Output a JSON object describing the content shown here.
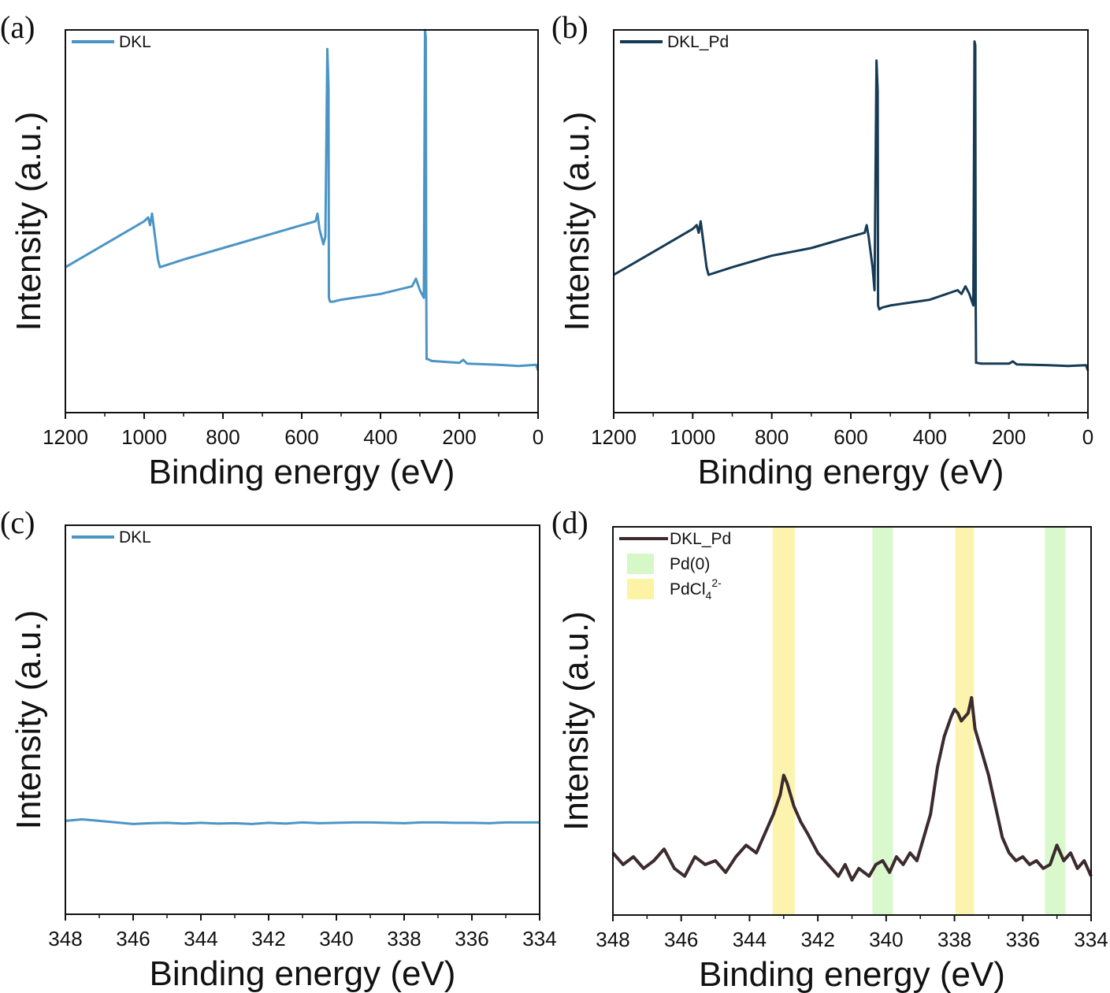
{
  "figure": {
    "type": "multi-panel XPS spectra"
  },
  "chart_data": [
    {
      "panel": "(a)",
      "type": "line",
      "xlabel": "Binding energy (eV)",
      "ylabel": "Intensity (a.u.)",
      "xlim": [
        1200,
        0
      ],
      "ylim": [
        0,
        100
      ],
      "xticks": [
        1200,
        1000,
        800,
        600,
        400,
        200,
        0
      ],
      "grid": false,
      "legend_position": "top-left",
      "series": [
        {
          "name": "DKL",
          "color": "#4B95C5",
          "x": [
            1200,
            1100,
            1000,
            990,
            985,
            980,
            975,
            965,
            960,
            900,
            800,
            700,
            600,
            565,
            560,
            555,
            545,
            540,
            535,
            532,
            531,
            528,
            520,
            500,
            400,
            320,
            310,
            300,
            290,
            287,
            285,
            284,
            283,
            280,
            270,
            200,
            190,
            180,
            100,
            50,
            5,
            0
          ],
          "values": [
            38,
            44,
            50,
            51,
            49,
            52,
            48,
            40,
            38,
            40,
            43,
            46,
            49,
            50,
            52,
            48,
            44,
            46,
            95,
            85,
            30,
            29,
            29,
            29.5,
            31,
            33,
            35,
            32,
            30,
            100,
            98,
            36,
            14,
            14,
            13.5,
            13,
            13.8,
            12.8,
            12.5,
            12.2,
            12.5,
            11
          ]
        }
      ]
    },
    {
      "panel": "(b)",
      "type": "line",
      "xlabel": "Binding energy (eV)",
      "ylabel": "Intensity (a.u.)",
      "xlim": [
        1200,
        0
      ],
      "ylim": [
        0,
        100
      ],
      "xticks": [
        1200,
        1000,
        800,
        600,
        400,
        200,
        0
      ],
      "grid": false,
      "legend_position": "top-left",
      "series": [
        {
          "name": "DKL_Pd",
          "color": "#173A55",
          "x": [
            1200,
            1100,
            1000,
            990,
            985,
            980,
            975,
            965,
            960,
            900,
            800,
            700,
            600,
            565,
            560,
            555,
            545,
            540,
            535,
            532,
            531,
            528,
            520,
            500,
            400,
            330,
            320,
            310,
            300,
            290,
            287,
            285,
            284,
            283,
            280,
            270,
            200,
            190,
            180,
            100,
            50,
            5,
            0
          ],
          "values": [
            36,
            42,
            48,
            49,
            47,
            50,
            46,
            38,
            36,
            38,
            41,
            43,
            46,
            47,
            49,
            46,
            38,
            32,
            92,
            84,
            28,
            27,
            27.5,
            28,
            29.5,
            32,
            31,
            33,
            31,
            28,
            97,
            96,
            30,
            13,
            13,
            12.8,
            12.8,
            13.4,
            12.6,
            12.4,
            12.2,
            12.4,
            11
          ]
        }
      ]
    },
    {
      "panel": "(c)",
      "type": "line",
      "xlabel": "Binding energy (eV)",
      "ylabel": "Intensity (a.u.)",
      "xlim": [
        348,
        334
      ],
      "ylim": [
        0,
        100
      ],
      "xticks": [
        348,
        346,
        344,
        342,
        340,
        338,
        336,
        334
      ],
      "grid": false,
      "legend_position": "top-left",
      "series": [
        {
          "name": "DKL",
          "color": "#4B95C5",
          "x": [
            348,
            347.5,
            347,
            346.5,
            346,
            345.5,
            345,
            344.5,
            344,
            343.5,
            343,
            342.5,
            342,
            341.5,
            341,
            340.5,
            340,
            339.5,
            339,
            338.5,
            338,
            337.5,
            337,
            336.5,
            336,
            335.5,
            335,
            334.5,
            334
          ],
          "values": [
            24,
            24.4,
            24,
            23.6,
            23.2,
            23.4,
            23.5,
            23.3,
            23.5,
            23.3,
            23.4,
            23.2,
            23.5,
            23.3,
            23.6,
            23.4,
            23.5,
            23.6,
            23.6,
            23.5,
            23.4,
            23.6,
            23.6,
            23.5,
            23.5,
            23.4,
            23.6,
            23.6,
            23.6
          ]
        }
      ]
    },
    {
      "panel": "(d)",
      "type": "line",
      "xlabel": "Binding energy (eV)",
      "ylabel": "Intensity (a.u.)",
      "xlim": [
        348,
        334
      ],
      "ylim": [
        0,
        100
      ],
      "xticks": [
        348,
        346,
        344,
        342,
        340,
        338,
        336,
        334
      ],
      "grid": false,
      "legend_position": "top-left",
      "series": [
        {
          "name": "DKL_Pd",
          "color": "#3C2A2E",
          "x": [
            348,
            347.7,
            347.4,
            347.1,
            346.8,
            346.5,
            346.2,
            345.9,
            345.6,
            345.3,
            345,
            344.7,
            344.4,
            344.1,
            343.8,
            343.5,
            343.3,
            343.1,
            343,
            342.9,
            342.7,
            342.5,
            342.3,
            342,
            341.8,
            341.6,
            341.4,
            341.2,
            341,
            340.8,
            340.5,
            340.3,
            340.1,
            339.9,
            339.7,
            339.5,
            339.3,
            339.1,
            338.9,
            338.7,
            338.5,
            338.3,
            338.1,
            338,
            337.9,
            337.8,
            337.6,
            337.5,
            337.4,
            337.2,
            337,
            336.8,
            336.6,
            336.4,
            336.2,
            336,
            335.8,
            335.6,
            335.4,
            335.2,
            335,
            334.8,
            334.6,
            334.4,
            334.2,
            334
          ],
          "values": [
            16,
            13,
            15,
            12,
            14,
            17,
            12,
            10,
            15,
            13,
            14,
            11,
            15,
            18,
            16,
            22,
            26,
            31,
            36,
            34,
            28,
            24,
            21,
            16,
            14,
            12,
            10,
            13,
            9,
            12,
            10,
            13,
            14,
            11,
            15,
            13,
            16,
            14,
            20,
            26,
            38,
            46,
            51,
            53,
            52,
            50,
            52,
            56,
            48,
            42,
            36,
            28,
            20,
            16,
            14,
            15,
            13,
            14,
            12,
            13,
            18,
            14,
            16,
            12,
            14,
            10
          ]
        }
      ],
      "bands": [
        {
          "label": "PdCl4 2-",
          "center": 343.0,
          "width": 0.65,
          "color": "#FCF3A5"
        },
        {
          "label": "Pd(0)",
          "center": 340.1,
          "width": 0.6,
          "color": "#D5F8C6"
        },
        {
          "label": "PdCl4 2-",
          "center": 337.7,
          "width": 0.55,
          "color": "#FCF3A5"
        },
        {
          "label": "Pd(0)",
          "center": 335.05,
          "width": 0.6,
          "color": "#D5F8C6"
        }
      ],
      "legend": [
        {
          "kind": "line",
          "text": "DKL_Pd",
          "color": "#3C2A2E"
        },
        {
          "kind": "patch",
          "text": "Pd(0)",
          "color": "#D5F8C6"
        },
        {
          "kind": "patch",
          "text": "PdCl",
          "sub": "4",
          "sup": "2-",
          "color": "#FCF3A5"
        }
      ]
    }
  ]
}
